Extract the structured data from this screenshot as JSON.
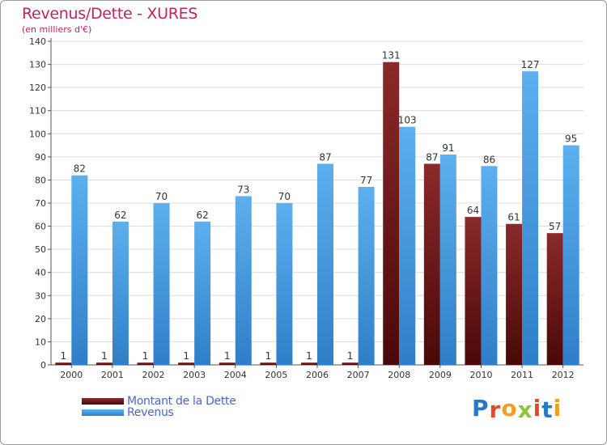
{
  "header": {
    "title": "Revenus/Dette - XURES",
    "subtitle": "(en milliers d'€)"
  },
  "chart_data": {
    "type": "bar",
    "categories": [
      "2000",
      "2001",
      "2002",
      "2003",
      "2004",
      "2005",
      "2006",
      "2007",
      "2008",
      "2009",
      "2010",
      "2011",
      "2012"
    ],
    "series": [
      {
        "name": "Montant de la Dette",
        "values": [
          1,
          1,
          1,
          1,
          1,
          1,
          1,
          1,
          131,
          87,
          64,
          61,
          57
        ],
        "color": "#7a1a1a"
      },
      {
        "name": "Revenus",
        "values": [
          82,
          62,
          70,
          62,
          73,
          70,
          87,
          77,
          103,
          91,
          86,
          127,
          95
        ],
        "color": "#4aa3e8"
      }
    ],
    "yticks": [
      0,
      10,
      20,
      30,
      40,
      50,
      60,
      70,
      80,
      90,
      100,
      110,
      120,
      130,
      140
    ],
    "ylim": [
      0,
      140
    ],
    "grid": true,
    "legend_position": "bottom-left"
  },
  "logo": {
    "letters": [
      "P",
      "r",
      "o",
      "x",
      "i",
      "t",
      "i"
    ],
    "colors": [
      "#2a78c8",
      "#e8472a",
      "#f0a020",
      "#8cc63f",
      "#e8472a",
      "#2a78c8",
      "#f0a020"
    ]
  }
}
